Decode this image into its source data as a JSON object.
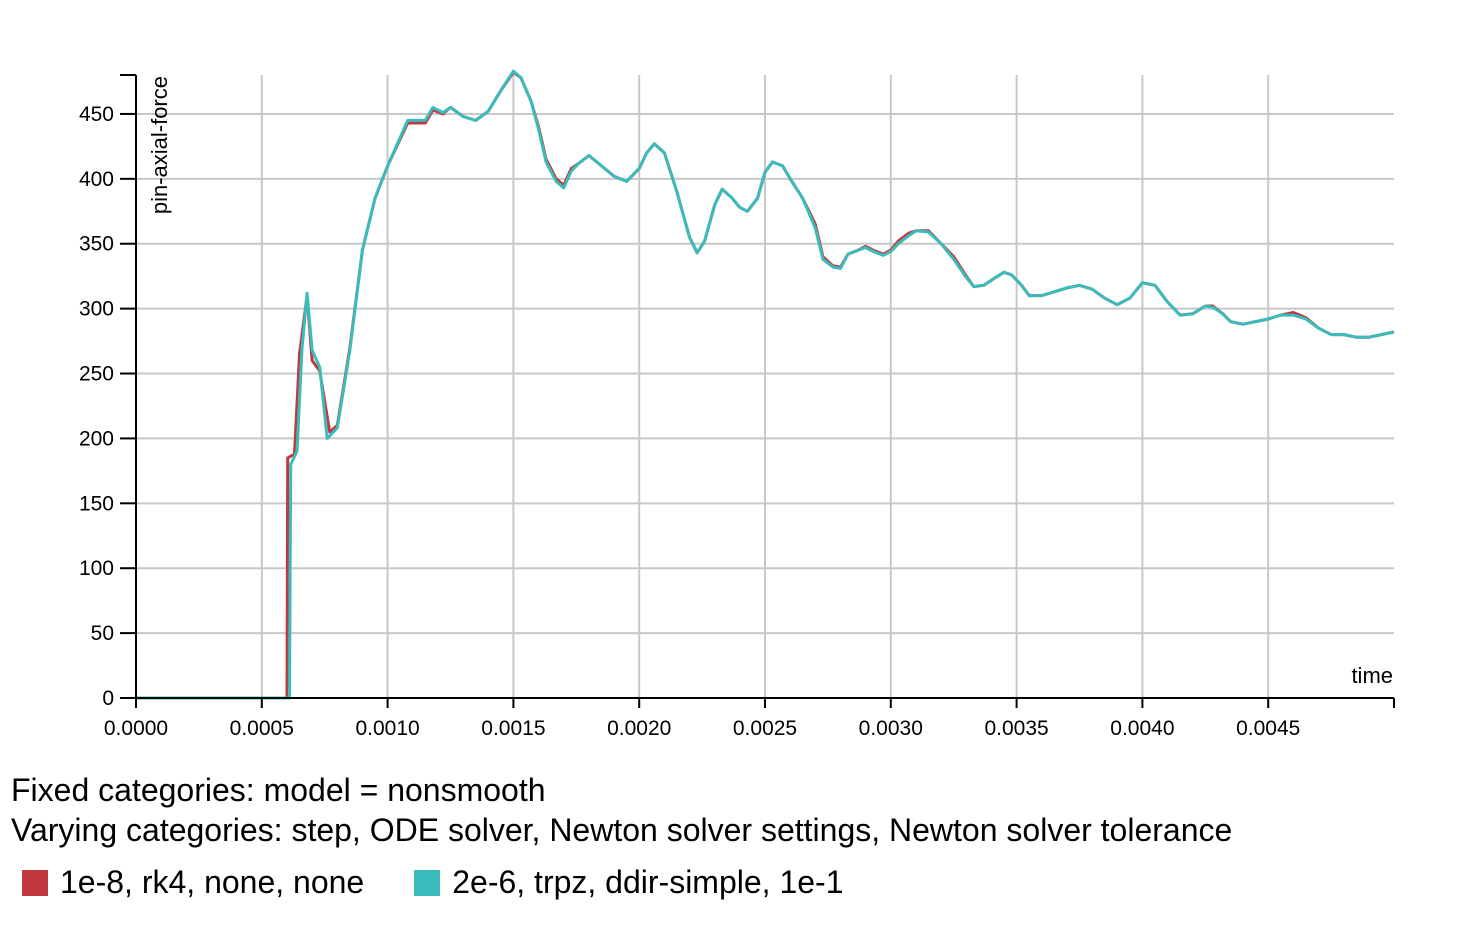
{
  "chart_data": {
    "type": "line",
    "xlabel": "time",
    "ylabel": "pin-axial-force",
    "xlim": [
      0,
      0.005
    ],
    "ylim": [
      0,
      480
    ],
    "x_ticks": [
      "0.0000",
      "0.0005",
      "0.0010",
      "0.0015",
      "0.0020",
      "0.0025",
      "0.0030",
      "0.0035",
      "0.0040",
      "0.0045"
    ],
    "y_ticks": [
      "0",
      "50",
      "100",
      "150",
      "200",
      "250",
      "300",
      "350",
      "400",
      "450"
    ],
    "grid": true,
    "series": [
      {
        "name": "1e-8, rk4, none, none",
        "color": "#c0393f",
        "points": [
          [
            0,
            0
          ],
          [
            0.0006,
            0
          ],
          [
            0.000603,
            185
          ],
          [
            0.00063,
            188
          ],
          [
            0.00065,
            265
          ],
          [
            0.00068,
            310
          ],
          [
            0.0007,
            260
          ],
          [
            0.00073,
            252
          ],
          [
            0.00077,
            205
          ],
          [
            0.0008,
            210
          ],
          [
            0.00085,
            270
          ],
          [
            0.0009,
            345
          ],
          [
            0.00095,
            385
          ],
          [
            0.001,
            410
          ],
          [
            0.00108,
            443
          ],
          [
            0.00115,
            443
          ],
          [
            0.00118,
            453
          ],
          [
            0.00122,
            450
          ],
          [
            0.00125,
            455
          ],
          [
            0.0013,
            448
          ],
          [
            0.00135,
            445
          ],
          [
            0.0014,
            452
          ],
          [
            0.00145,
            468
          ],
          [
            0.0015,
            482
          ],
          [
            0.00153,
            478
          ],
          [
            0.00157,
            460
          ],
          [
            0.0016,
            440
          ],
          [
            0.00163,
            415
          ],
          [
            0.00167,
            400
          ],
          [
            0.0017,
            395
          ],
          [
            0.00173,
            408
          ],
          [
            0.00176,
            412
          ],
          [
            0.0018,
            418
          ],
          [
            0.00185,
            410
          ],
          [
            0.0019,
            402
          ],
          [
            0.00195,
            398
          ],
          [
            0.002,
            408
          ],
          [
            0.00203,
            420
          ],
          [
            0.00206,
            427
          ],
          [
            0.0021,
            420
          ],
          [
            0.00215,
            390
          ],
          [
            0.0022,
            355
          ],
          [
            0.00223,
            343
          ],
          [
            0.00226,
            352
          ],
          [
            0.0023,
            380
          ],
          [
            0.00233,
            392
          ],
          [
            0.00237,
            385
          ],
          [
            0.0024,
            378
          ],
          [
            0.00243,
            375
          ],
          [
            0.00247,
            385
          ],
          [
            0.0025,
            405
          ],
          [
            0.00253,
            413
          ],
          [
            0.00257,
            410
          ],
          [
            0.0026,
            400
          ],
          [
            0.00265,
            385
          ],
          [
            0.0027,
            365
          ],
          [
            0.00273,
            340
          ],
          [
            0.00277,
            333
          ],
          [
            0.0028,
            332
          ],
          [
            0.00283,
            342
          ],
          [
            0.00287,
            345
          ],
          [
            0.0029,
            348
          ],
          [
            0.00293,
            345
          ],
          [
            0.00297,
            342
          ],
          [
            0.003,
            345
          ],
          [
            0.00303,
            352
          ],
          [
            0.00307,
            358
          ],
          [
            0.0031,
            360
          ],
          [
            0.00315,
            360
          ],
          [
            0.0032,
            350
          ],
          [
            0.00325,
            340
          ],
          [
            0.0033,
            325
          ],
          [
            0.00333,
            317
          ],
          [
            0.00337,
            318
          ],
          [
            0.0034,
            322
          ],
          [
            0.00345,
            328
          ],
          [
            0.00348,
            326
          ],
          [
            0.00352,
            318
          ],
          [
            0.00355,
            310
          ],
          [
            0.0036,
            310
          ],
          [
            0.00365,
            313
          ],
          [
            0.0037,
            316
          ],
          [
            0.00375,
            318
          ],
          [
            0.0038,
            315
          ],
          [
            0.00385,
            308
          ],
          [
            0.0039,
            303
          ],
          [
            0.00395,
            308
          ],
          [
            0.004,
            320
          ],
          [
            0.00405,
            318
          ],
          [
            0.0041,
            305
          ],
          [
            0.00415,
            295
          ],
          [
            0.0042,
            296
          ],
          [
            0.00425,
            302
          ],
          [
            0.00428,
            302
          ],
          [
            0.00432,
            296
          ],
          [
            0.00435,
            290
          ],
          [
            0.0044,
            288
          ],
          [
            0.00445,
            290
          ],
          [
            0.0045,
            292
          ],
          [
            0.00455,
            295
          ],
          [
            0.0046,
            297
          ],
          [
            0.00465,
            293
          ],
          [
            0.0047,
            285
          ],
          [
            0.00475,
            280
          ],
          [
            0.0048,
            280
          ],
          [
            0.00485,
            278
          ],
          [
            0.0049,
            278
          ],
          [
            0.00495,
            280
          ],
          [
            0.005,
            282
          ]
        ]
      },
      {
        "name": "2e-6, trpz, ddir-simple, 1e-1",
        "color": "#3bbcbc",
        "points": [
          [
            0,
            0
          ],
          [
            0.00061,
            0
          ],
          [
            0.000615,
            180
          ],
          [
            0.00064,
            190
          ],
          [
            0.00066,
            270
          ],
          [
            0.00068,
            312
          ],
          [
            0.0007,
            268
          ],
          [
            0.00073,
            255
          ],
          [
            0.00076,
            200
          ],
          [
            0.0008,
            208
          ],
          [
            0.00085,
            268
          ],
          [
            0.0009,
            345
          ],
          [
            0.00095,
            385
          ],
          [
            0.001,
            410
          ],
          [
            0.00108,
            445
          ],
          [
            0.00115,
            445
          ],
          [
            0.00118,
            455
          ],
          [
            0.00122,
            451
          ],
          [
            0.00125,
            455
          ],
          [
            0.0013,
            448
          ],
          [
            0.00135,
            445
          ],
          [
            0.0014,
            452
          ],
          [
            0.00145,
            468
          ],
          [
            0.0015,
            483
          ],
          [
            0.00153,
            478
          ],
          [
            0.00157,
            460
          ],
          [
            0.0016,
            438
          ],
          [
            0.00163,
            413
          ],
          [
            0.00167,
            398
          ],
          [
            0.0017,
            393
          ],
          [
            0.00173,
            406
          ],
          [
            0.00176,
            412
          ],
          [
            0.0018,
            418
          ],
          [
            0.00185,
            410
          ],
          [
            0.0019,
            402
          ],
          [
            0.00195,
            398
          ],
          [
            0.002,
            408
          ],
          [
            0.00203,
            420
          ],
          [
            0.00206,
            427
          ],
          [
            0.0021,
            420
          ],
          [
            0.00215,
            390
          ],
          [
            0.0022,
            355
          ],
          [
            0.00223,
            343
          ],
          [
            0.00226,
            352
          ],
          [
            0.0023,
            380
          ],
          [
            0.00233,
            392
          ],
          [
            0.00237,
            385
          ],
          [
            0.0024,
            378
          ],
          [
            0.00243,
            375
          ],
          [
            0.00247,
            385
          ],
          [
            0.0025,
            405
          ],
          [
            0.00253,
            413
          ],
          [
            0.00257,
            410
          ],
          [
            0.0026,
            400
          ],
          [
            0.00265,
            385
          ],
          [
            0.0027,
            362
          ],
          [
            0.00273,
            338
          ],
          [
            0.00277,
            332
          ],
          [
            0.0028,
            331
          ],
          [
            0.00283,
            342
          ],
          [
            0.00287,
            345
          ],
          [
            0.0029,
            347
          ],
          [
            0.00293,
            344
          ],
          [
            0.00297,
            341
          ],
          [
            0.003,
            344
          ],
          [
            0.00303,
            350
          ],
          [
            0.00307,
            356
          ],
          [
            0.0031,
            360
          ],
          [
            0.00315,
            359
          ],
          [
            0.0032,
            350
          ],
          [
            0.00325,
            338
          ],
          [
            0.0033,
            324
          ],
          [
            0.00333,
            317
          ],
          [
            0.00337,
            318
          ],
          [
            0.0034,
            322
          ],
          [
            0.00345,
            328
          ],
          [
            0.00348,
            326
          ],
          [
            0.00352,
            318
          ],
          [
            0.00355,
            310
          ],
          [
            0.0036,
            310
          ],
          [
            0.00365,
            313
          ],
          [
            0.0037,
            316
          ],
          [
            0.00375,
            318
          ],
          [
            0.0038,
            315
          ],
          [
            0.00385,
            308
          ],
          [
            0.0039,
            303
          ],
          [
            0.00395,
            308
          ],
          [
            0.004,
            320
          ],
          [
            0.00405,
            318
          ],
          [
            0.0041,
            305
          ],
          [
            0.00415,
            295
          ],
          [
            0.0042,
            296
          ],
          [
            0.00425,
            302
          ],
          [
            0.00428,
            301
          ],
          [
            0.00432,
            296
          ],
          [
            0.00435,
            290
          ],
          [
            0.0044,
            288
          ],
          [
            0.00445,
            290
          ],
          [
            0.0045,
            292
          ],
          [
            0.00455,
            295
          ],
          [
            0.0046,
            295
          ],
          [
            0.00465,
            292
          ],
          [
            0.0047,
            285
          ],
          [
            0.00475,
            280
          ],
          [
            0.0048,
            280
          ],
          [
            0.00485,
            278
          ],
          [
            0.0049,
            278
          ],
          [
            0.00495,
            280
          ],
          [
            0.005,
            282
          ]
        ]
      }
    ]
  },
  "info": {
    "fixed": "Fixed categories: model = nonsmooth",
    "varying": "Varying categories: step, ODE solver, Newton solver settings, Newton solver tolerance"
  }
}
